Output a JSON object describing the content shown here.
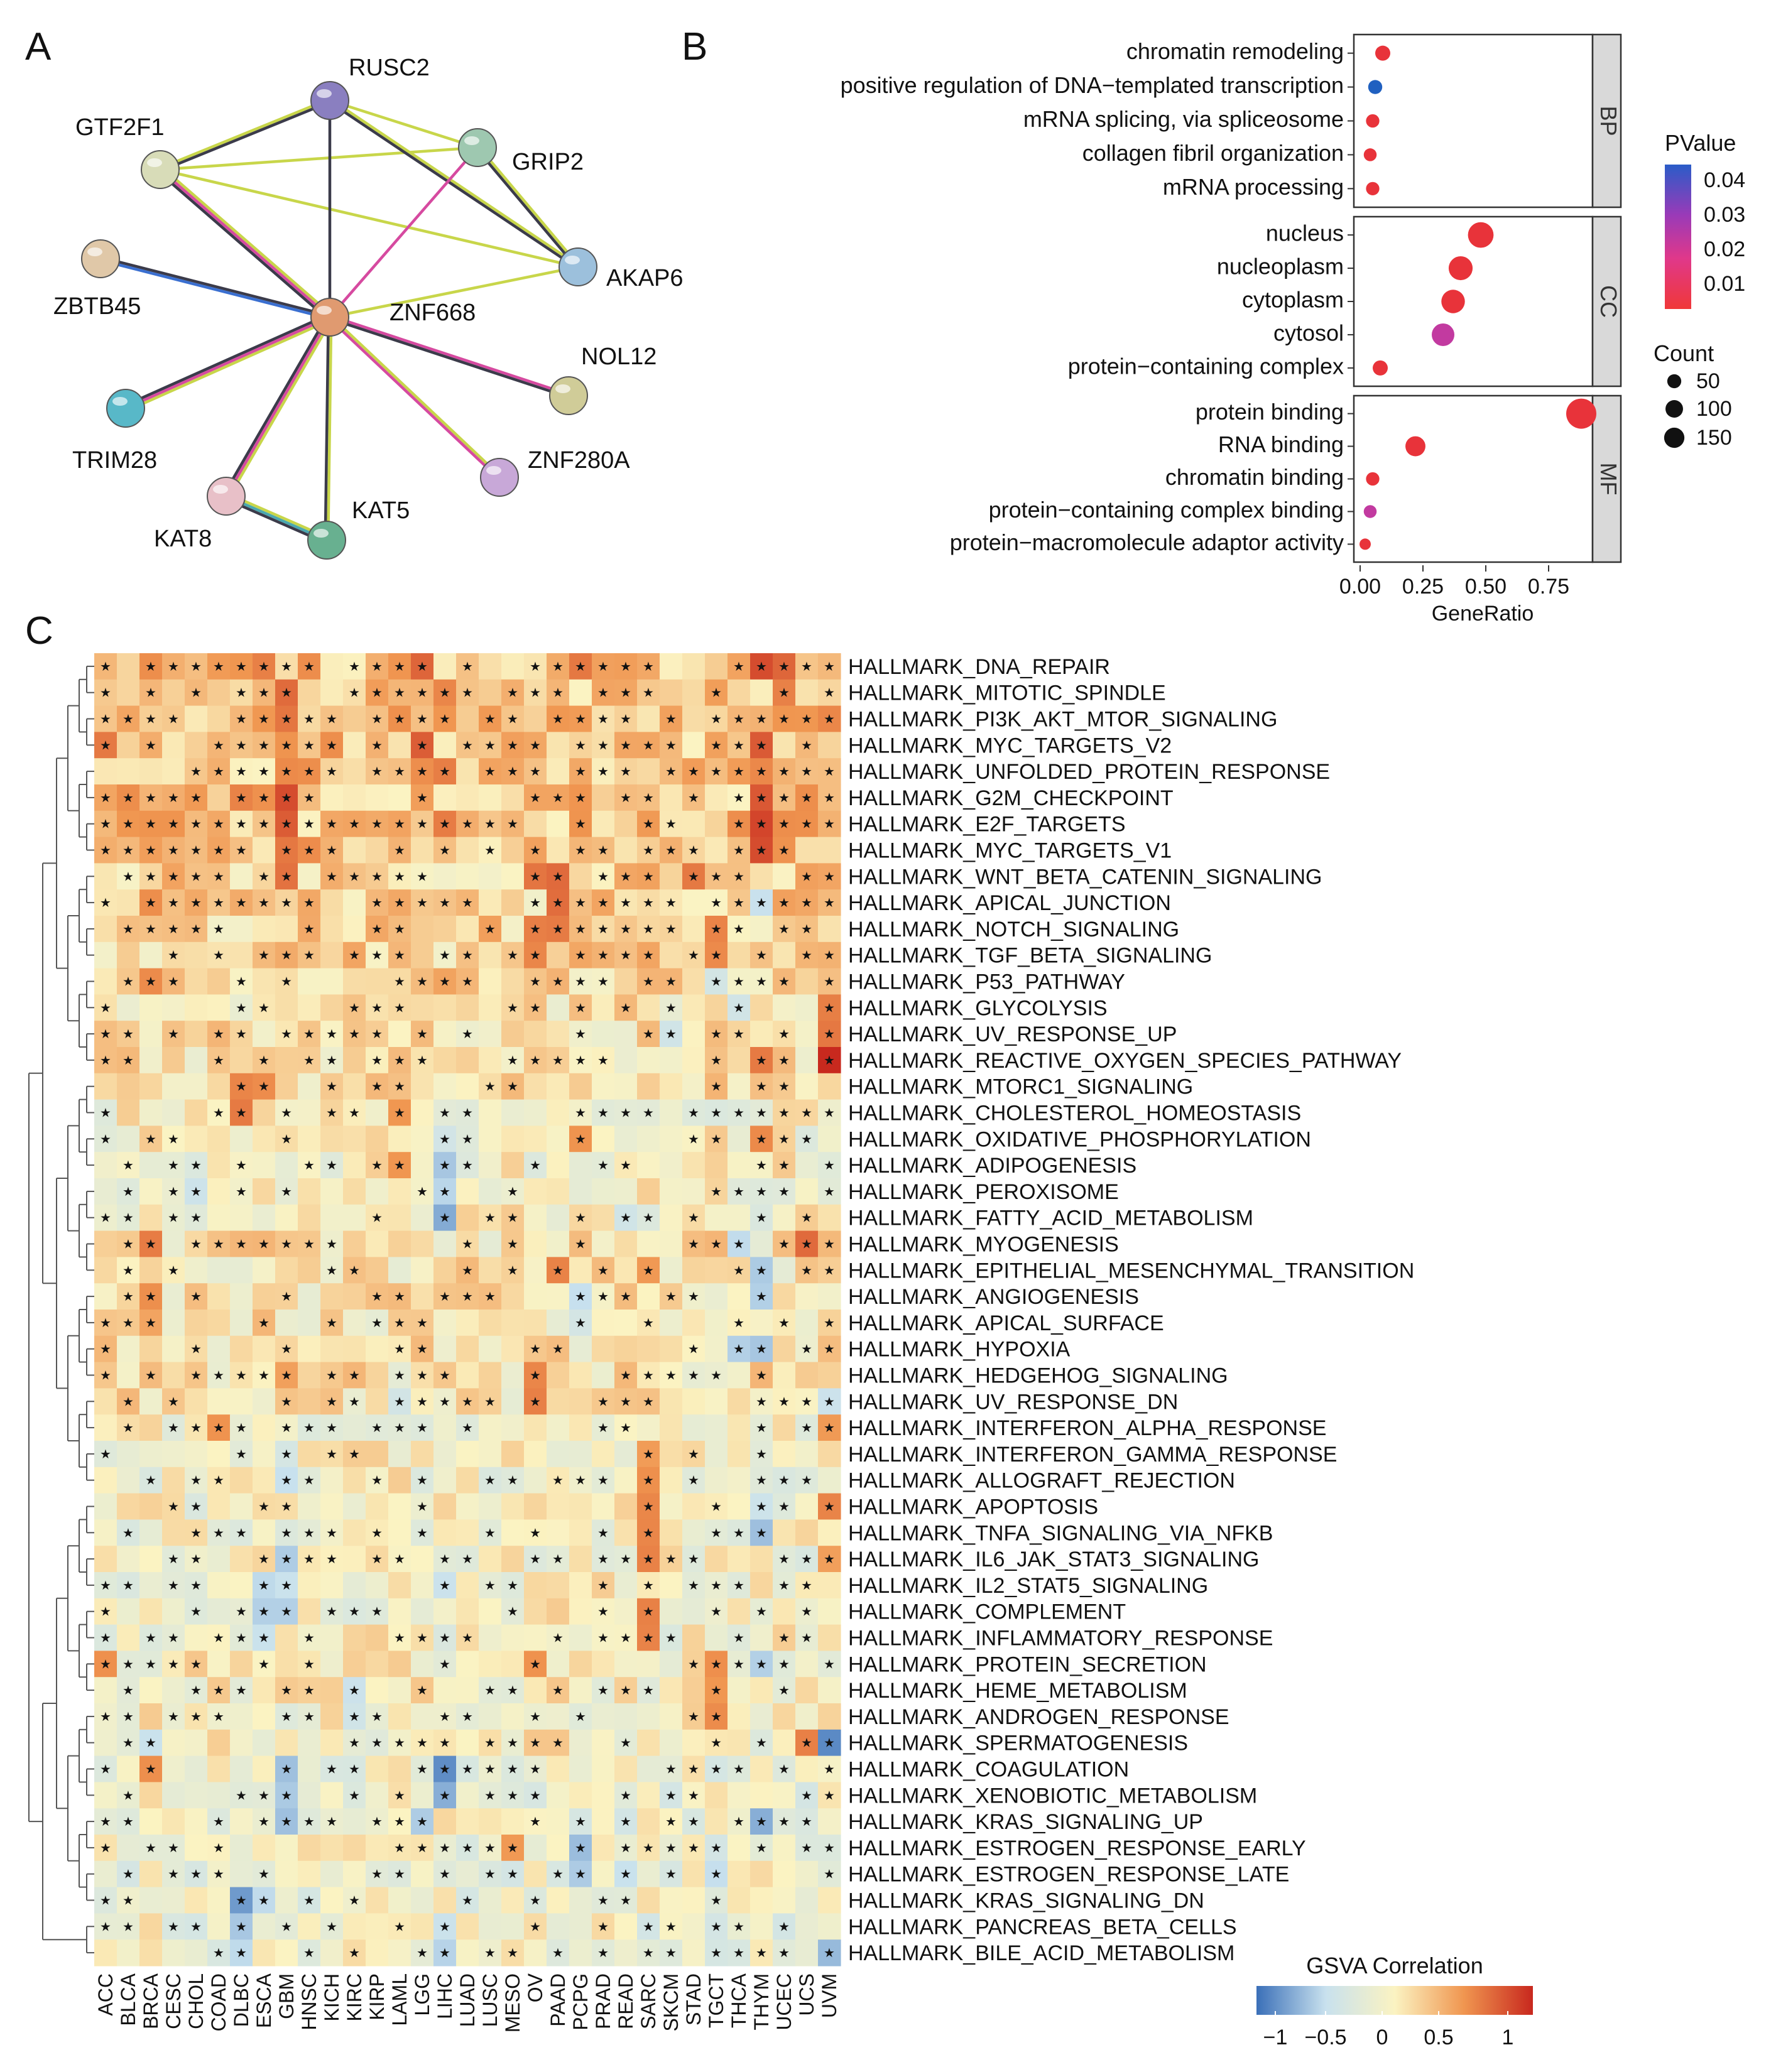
{
  "panels": {
    "a": "A",
    "b": "B",
    "c": "C"
  },
  "colors": {
    "edge_yellow": "#c8d64a",
    "edge_magenta": "#d64aa0",
    "edge_dark": "#3b3b4a",
    "edge_teal": "#4aa8b0",
    "edge_blue": "#3a6fd0",
    "dot_red": "#e8333a",
    "dot_purple": "#c23aa0",
    "dot_blue": "#2060c0",
    "strip_bg": "#d9d9d9",
    "heat_low": "#3a6fb8",
    "heat_mid": "#fbf3c2",
    "heat_high": "#c8281e"
  },
  "network": {
    "nodes": [
      {
        "id": "RUSC2",
        "label": "RUSC2",
        "color": "#8a7fc0"
      },
      {
        "id": "GTF2F1",
        "label": "GTF2F1",
        "color": "#d8dcb8"
      },
      {
        "id": "GRIP2",
        "label": "GRIP2",
        "color": "#9ec8b0"
      },
      {
        "id": "AKAP6",
        "label": "AKAP6",
        "color": "#9cc0dc"
      },
      {
        "id": "ZBTB45",
        "label": "ZBTB45",
        "color": "#e0c8a8"
      },
      {
        "id": "ZNF668",
        "label": "ZNF668",
        "color": "#e09a70"
      },
      {
        "id": "NOL12",
        "label": "NOL12",
        "color": "#d0cc98"
      },
      {
        "id": "TRIM28",
        "label": "TRIM28",
        "color": "#58b8c8"
      },
      {
        "id": "ZNF280A",
        "label": "ZNF280A",
        "color": "#c8a8d8"
      },
      {
        "id": "KAT8",
        "label": "KAT8",
        "color": "#e8c0c8"
      },
      {
        "id": "KAT5",
        "label": "KAT5",
        "color": "#68b090"
      }
    ],
    "edges": [
      {
        "a": "GTF2F1",
        "b": "RUSC2",
        "colors": [
          "edge_yellow",
          "edge_dark"
        ]
      },
      {
        "a": "GTF2F1",
        "b": "GRIP2",
        "colors": [
          "edge_yellow"
        ]
      },
      {
        "a": "GTF2F1",
        "b": "AKAP6",
        "colors": [
          "edge_yellow"
        ]
      },
      {
        "a": "GTF2F1",
        "b": "ZNF668",
        "colors": [
          "edge_yellow",
          "edge_magenta",
          "edge_dark"
        ]
      },
      {
        "a": "RUSC2",
        "b": "GRIP2",
        "colors": [
          "edge_yellow"
        ]
      },
      {
        "a": "RUSC2",
        "b": "AKAP6",
        "colors": [
          "edge_yellow",
          "edge_dark"
        ]
      },
      {
        "a": "RUSC2",
        "b": "ZNF668",
        "colors": [
          "edge_dark"
        ]
      },
      {
        "a": "GRIP2",
        "b": "AKAP6",
        "colors": [
          "edge_yellow",
          "edge_dark"
        ]
      },
      {
        "a": "GRIP2",
        "b": "ZNF668",
        "colors": [
          "edge_magenta"
        ]
      },
      {
        "a": "AKAP6",
        "b": "ZNF668",
        "colors": [
          "edge_yellow"
        ]
      },
      {
        "a": "ZBTB45",
        "b": "ZNF668",
        "colors": [
          "edge_dark",
          "edge_blue"
        ]
      },
      {
        "a": "ZNF668",
        "b": "NOL12",
        "colors": [
          "edge_magenta",
          "edge_dark"
        ]
      },
      {
        "a": "ZNF668",
        "b": "TRIM28",
        "colors": [
          "edge_yellow",
          "edge_magenta",
          "edge_dark"
        ]
      },
      {
        "a": "ZNF668",
        "b": "ZNF280A",
        "colors": [
          "edge_yellow",
          "edge_magenta"
        ]
      },
      {
        "a": "ZNF668",
        "b": "KAT8",
        "colors": [
          "edge_yellow",
          "edge_magenta",
          "edge_dark"
        ]
      },
      {
        "a": "ZNF668",
        "b": "KAT5",
        "colors": [
          "edge_yellow",
          "edge_dark"
        ]
      },
      {
        "a": "KAT8",
        "b": "KAT5",
        "colors": [
          "edge_yellow",
          "edge_teal",
          "edge_dark"
        ]
      }
    ]
  },
  "chart_data": [
    {
      "type": "scatter",
      "name": "go-enrichment-dotplot",
      "xlabel": "GeneRatio",
      "xlim": [
        0,
        0.9
      ],
      "xticks": [
        "0.00",
        "0.25",
        "0.50",
        "0.75"
      ],
      "xtick_values": [
        0,
        0.25,
        0.5,
        0.75
      ],
      "groups": [
        {
          "strip": "BP",
          "terms": [
            {
              "term": "chromatin remodeling",
              "ratio": 0.09,
              "count": 20,
              "color": "dot_red"
            },
            {
              "term": "positive regulation of DNA−templated transcription",
              "ratio": 0.06,
              "count": 15,
              "color": "dot_blue"
            },
            {
              "term": "mRNA splicing, via spliceosome",
              "ratio": 0.05,
              "count": 12,
              "color": "dot_red"
            },
            {
              "term": "collagen fibril organization",
              "ratio": 0.04,
              "count": 10,
              "color": "dot_red"
            },
            {
              "term": "mRNA processing",
              "ratio": 0.05,
              "count": 12,
              "color": "dot_red"
            }
          ]
        },
        {
          "strip": "CC",
          "terms": [
            {
              "term": "nucleus",
              "ratio": 0.48,
              "count": 115,
              "color": "dot_red"
            },
            {
              "term": "nucleoplasm",
              "ratio": 0.4,
              "count": 95,
              "color": "dot_red"
            },
            {
              "term": "cytoplasm",
              "ratio": 0.37,
              "count": 90,
              "color": "dot_red"
            },
            {
              "term": "cytosol",
              "ratio": 0.33,
              "count": 80,
              "color": "dot_purple"
            },
            {
              "term": "protein−containing complex",
              "ratio": 0.08,
              "count": 20,
              "color": "dot_red"
            }
          ]
        },
        {
          "strip": "MF",
          "terms": [
            {
              "term": "protein binding",
              "ratio": 0.88,
              "count": 180,
              "color": "dot_red"
            },
            {
              "term": "RNA binding",
              "ratio": 0.22,
              "count": 55,
              "color": "dot_red"
            },
            {
              "term": "chromatin binding",
              "ratio": 0.05,
              "count": 12,
              "color": "dot_red"
            },
            {
              "term": "protein−containing complex binding",
              "ratio": 0.04,
              "count": 10,
              "color": "dot_purple"
            },
            {
              "term": "protein−macromolecule adaptor activity",
              "ratio": 0.02,
              "count": 5,
              "color": "dot_red"
            }
          ]
        }
      ],
      "legend_pvalue": {
        "title": "PValue",
        "ticks": [
          "0.04",
          "0.03",
          "0.02",
          "0.01"
        ]
      },
      "legend_count": {
        "title": "Count",
        "items": [
          {
            "label": "50",
            "value": 50
          },
          {
            "label": "100",
            "value": 100
          },
          {
            "label": "150",
            "value": 150
          }
        ]
      }
    },
    {
      "type": "heatmap",
      "name": "gsva-correlation-heatmap",
      "legend_title": "GSVA Correlation",
      "legend_ticks": [
        "−1",
        "−0.5",
        "0",
        "0.5",
        "1"
      ],
      "legend_tick_values": [
        -1,
        -0.5,
        0,
        0.5,
        1
      ],
      "columns": [
        "ACC",
        "BLCA",
        "BRCA",
        "CESC",
        "CHOL",
        "COAD",
        "DLBC",
        "ESCA",
        "GBM",
        "HNSC",
        "KICH",
        "KIRC",
        "KIRP",
        "LAML",
        "LGG",
        "LIHC",
        "LUAD",
        "LUSC",
        "MESO",
        "OV",
        "PAAD",
        "PCPG",
        "PRAD",
        "READ",
        "SARC",
        "SKCM",
        "STAD",
        "TGCT",
        "THCA",
        "THYM",
        "UCEC",
        "UCS",
        "UVM"
      ],
      "rows": [
        {
          "label": "HALLMARK_DNA_REPAIR",
          "cluster": 0,
          "col_bias": {
            "ESCA": 0.55,
            "LGG": 0.7,
            "PCPG": 0.6,
            "THYM": 0.8,
            "UCEC": 0.75
          }
        },
        {
          "label": "HALLMARK_MITOTIC_SPINDLE",
          "cluster": 0,
          "col_bias": {
            "GBM": 0.7,
            "LIHC": 0.6,
            "UCEC": 0.6
          }
        },
        {
          "label": "HALLMARK_PI3K_AKT_MTOR_SIGNALING",
          "cluster": 0,
          "col_bias": {
            "GBM": 0.6,
            "LAML": 0.5,
            "UVM": 0.55
          }
        },
        {
          "label": "HALLMARK_MYC_TARGETS_V2",
          "cluster": 0,
          "col_bias": {
            "ACC": 0.6,
            "LGG": 0.75,
            "THYM": 0.8
          }
        },
        {
          "label": "HALLMARK_UNFOLDED_PROTEIN_RESPONSE",
          "cluster": 0,
          "col_bias": {
            "GBM": 0.6,
            "LIHC": 0.6,
            "THYM": 0.6
          }
        },
        {
          "label": "HALLMARK_G2M_CHECKPOINT",
          "cluster": 0,
          "col_bias": {
            "GBM": 0.8,
            "DLBC": 0.55,
            "THYM": 0.8
          }
        },
        {
          "label": "HALLMARK_E2F_TARGETS",
          "cluster": 0,
          "col_bias": {
            "GBM": 0.75,
            "THYM": 0.85,
            "LIHC": 0.6
          }
        },
        {
          "label": "HALLMARK_MYC_TARGETS_V1",
          "cluster": 0,
          "col_bias": {
            "GBM": 0.6,
            "THYM": 0.8
          }
        },
        {
          "label": "HALLMARK_WNT_BETA_CATENIN_SIGNALING",
          "cluster": 1,
          "col_bias": {
            "GBM": 0.65,
            "PAAD": 0.75,
            "OV": 0.6,
            "STAD": 0.6
          }
        },
        {
          "label": "HALLMARK_APICAL_JUNCTION",
          "cluster": 1,
          "col_bias": {
            "PAAD": 0.7,
            "BRCA": 0.55,
            "THYM": -0.5
          }
        },
        {
          "label": "HALLMARK_NOTCH_SIGNALING",
          "cluster": 1,
          "col_bias": {
            "OV": 0.65,
            "PAAD": 0.6,
            "TGCT": 0.6
          }
        },
        {
          "label": "HALLMARK_TGF_BETA_SIGNALING",
          "cluster": 1,
          "col_bias": {
            "OV": 0.6,
            "TGCT": 0.6
          }
        },
        {
          "label": "HALLMARK_P53_PATHWAY",
          "cluster": 1,
          "col_bias": {
            "BRCA": 0.6,
            "TGCT": -0.4
          }
        },
        {
          "label": "HALLMARK_GLYCOLYSIS",
          "cluster": 2,
          "col_bias": {
            "THCA": -0.45,
            "UVM": 0.6
          }
        },
        {
          "label": "HALLMARK_UV_RESPONSE_UP",
          "cluster": 2,
          "col_bias": {
            "SKCM": -0.4,
            "UVM": 0.6
          }
        },
        {
          "label": "HALLMARK_REACTIVE_OXYGEN_SPECIES_PATHWAY",
          "cluster": 2,
          "col_bias": {
            "UVM": 0.95,
            "THYM": 0.6
          }
        },
        {
          "label": "HALLMARK_MTORC1_SIGNALING",
          "cluster": 2,
          "col_bias": {
            "DLBC": 0.6,
            "ESCA": 0.55
          }
        },
        {
          "label": "HALLMARK_CHOLESTEROL_HOMEOSTASIS",
          "cluster": 3,
          "col_bias": {
            "DLBC": 0.6,
            "LAML": 0.5
          }
        },
        {
          "label": "HALLMARK_OXIDATIVE_PHOSPHORYLATION",
          "cluster": 3,
          "col_bias": {
            "THYM": 0.6,
            "PCPG": 0.5,
            "LIHC": -0.4
          }
        },
        {
          "label": "HALLMARK_ADIPOGENESIS",
          "cluster": 3,
          "col_bias": {
            "LIHC": -0.6,
            "LAML": 0.55
          }
        },
        {
          "label": "HALLMARK_PEROXISOME",
          "cluster": 3,
          "col_bias": {
            "LIHC": -0.55,
            "CHOL": -0.45
          }
        },
        {
          "label": "HALLMARK_FATTY_ACID_METABOLISM",
          "cluster": 3,
          "col_bias": {
            "LIHC": -0.7,
            "READ": -0.4
          }
        },
        {
          "label": "HALLMARK_MYOGENESIS",
          "cluster": 4,
          "col_bias": {
            "BRCA": 0.6,
            "UCS": 0.7,
            "THCA": -0.5
          }
        },
        {
          "label": "HALLMARK_EPITHELIAL_MESENCHYMAL_TRANSITION",
          "cluster": 4,
          "col_bias": {
            "PAAD": 0.6,
            "SARC": 0.5,
            "THYM": -0.6
          }
        },
        {
          "label": "HALLMARK_ANGIOGENESIS",
          "cluster": 4,
          "col_bias": {
            "BRCA": 0.5,
            "THYM": -0.6,
            "PCPG": -0.5
          }
        },
        {
          "label": "HALLMARK_APICAL_SURFACE",
          "cluster": 4,
          "col_bias": {
            "BRCA": 0.4,
            "PCPG": -0.4
          }
        },
        {
          "label": "HALLMARK_HYPOXIA",
          "cluster": 4,
          "col_bias": {
            "THCA": -0.55,
            "THYM": -0.6
          }
        },
        {
          "label": "HALLMARK_HEDGEHOG_SIGNALING",
          "cluster": 4,
          "col_bias": {
            "OV": 0.55,
            "GBM": 0.45
          }
        },
        {
          "label": "HALLMARK_UV_RESPONSE_DN",
          "cluster": 4,
          "col_bias": {
            "OV": 0.6,
            "UVM": -0.5,
            "LAML": -0.4
          }
        },
        {
          "label": "HALLMARK_INTERFERON_ALPHA_RESPONSE",
          "cluster": 5,
          "col_bias": {
            "COAD": 0.55,
            "UVM": 0.5
          }
        },
        {
          "label": "HALLMARK_INTERFERON_GAMMA_RESPONSE",
          "cluster": 5,
          "col_bias": {
            "SARC": 0.5,
            "GBM": -0.4
          }
        },
        {
          "label": "HALLMARK_ALLOGRAFT_REJECTION",
          "cluster": 5,
          "col_bias": {
            "SARC": 0.55,
            "GBM": -0.5
          }
        },
        {
          "label": "HALLMARK_APOPTOSIS",
          "cluster": 5,
          "col_bias": {
            "SARC": 0.55,
            "UVM": 0.55,
            "THYM": -0.45
          }
        },
        {
          "label": "HALLMARK_TNFA_SIGNALING_VIA_NFKB",
          "cluster": 5,
          "col_bias": {
            "SARC": 0.55,
            "THYM": -0.6
          }
        },
        {
          "label": "HALLMARK_IL6_JAK_STAT3_SIGNALING",
          "cluster": 5,
          "col_bias": {
            "SARC": 0.6,
            "GBM": -0.55,
            "UVM": 0.5
          }
        },
        {
          "label": "HALLMARK_IL2_STAT5_SIGNALING",
          "cluster": 5,
          "col_bias": {
            "ESCA": -0.5,
            "GBM": -0.5,
            "LIHC": -0.45
          }
        },
        {
          "label": "HALLMARK_COMPLEMENT",
          "cluster": 5,
          "col_bias": {
            "SARC": 0.6,
            "ESCA": -0.55,
            "GBM": -0.55
          }
        },
        {
          "label": "HALLMARK_INFLAMMATORY_RESPONSE",
          "cluster": 5,
          "col_bias": {
            "SARC": 0.55,
            "ESCA": -0.5
          }
        },
        {
          "label": "HALLMARK_PROTEIN_SECRETION",
          "cluster": 6,
          "col_bias": {
            "ACC": 0.5,
            "OV": 0.5,
            "TGCT": 0.55,
            "THYM": -0.6
          }
        },
        {
          "label": "HALLMARK_HEME_METABOLISM",
          "cluster": 6,
          "col_bias": {
            "KIRC": -0.5,
            "TGCT": 0.45
          }
        },
        {
          "label": "HALLMARK_ANDROGEN_RESPONSE",
          "cluster": 6,
          "col_bias": {
            "KIRC": -0.45,
            "TGCT": 0.5
          }
        },
        {
          "label": "HALLMARK_SPERMATOGENESIS",
          "cluster": 6,
          "col_bias": {
            "UVM": -0.9,
            "UCS": 0.6,
            "BRCA": -0.5
          }
        },
        {
          "label": "HALLMARK_COAGULATION",
          "cluster": 7,
          "col_bias": {
            "LIHC": -0.85,
            "GBM": -0.6,
            "BRCA": 0.5
          }
        },
        {
          "label": "HALLMARK_XENOBIOTIC_METABOLISM",
          "cluster": 7,
          "col_bias": {
            "LIHC": -0.75,
            "GBM": -0.6
          }
        },
        {
          "label": "HALLMARK_KRAS_SIGNALING_UP",
          "cluster": 7,
          "col_bias": {
            "GBM": -0.6,
            "LGG": -0.55,
            "THYM": -0.7
          }
        },
        {
          "label": "HALLMARK_ESTROGEN_RESPONSE_EARLY",
          "cluster": 7,
          "col_bias": {
            "PCPG": -0.65,
            "MESO": 0.5
          }
        },
        {
          "label": "HALLMARK_ESTROGEN_RESPONSE_LATE",
          "cluster": 7,
          "col_bias": {
            "PCPG": -0.6,
            "TGCT": -0.55,
            "READ": -0.45
          }
        },
        {
          "label": "HALLMARK_KRAS_SIGNALING_DN",
          "cluster": 7,
          "col_bias": {
            "DLBC": -0.8,
            "ESCA": -0.5
          }
        },
        {
          "label": "HALLMARK_PANCREAS_BETA_CELLS",
          "cluster": 7,
          "col_bias": {
            "DLBC": -0.6,
            "LIHC": -0.5
          }
        },
        {
          "label": "HALLMARK_BILE_ACID_METABOLISM",
          "cluster": 7,
          "col_bias": {
            "UVM": -0.7,
            "LIHC": -0.6,
            "DLBC": -0.55
          }
        }
      ],
      "cluster_trends": [
        0.45,
        0.3,
        0.15,
        -0.08,
        0.1,
        -0.1,
        -0.05,
        -0.2
      ]
    }
  ]
}
